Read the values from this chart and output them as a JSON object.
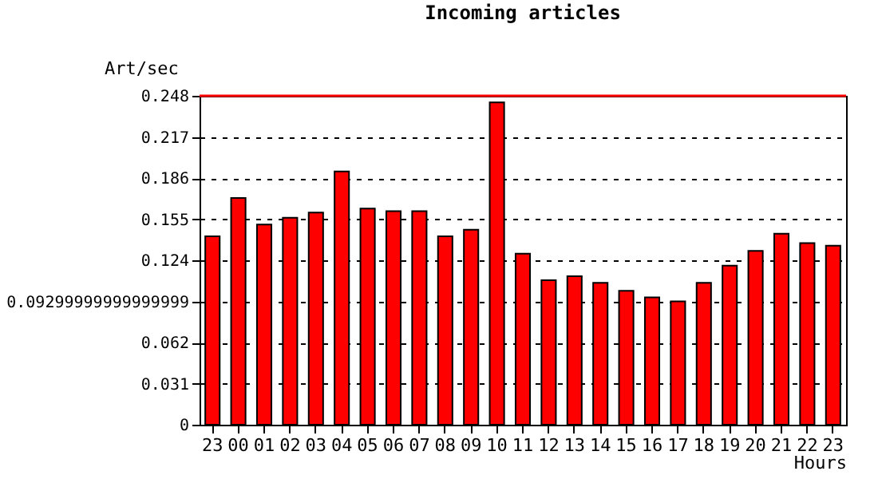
{
  "chart_data": {
    "type": "bar",
    "title": "Incoming articles",
    "xlabel": "Hours",
    "ylabel": "Art/sec",
    "categories": [
      "23",
      "00",
      "01",
      "02",
      "03",
      "04",
      "05",
      "06",
      "07",
      "08",
      "09",
      "10",
      "11",
      "12",
      "13",
      "14",
      "15",
      "16",
      "17",
      "18",
      "19",
      "20",
      "21",
      "22",
      "23"
    ],
    "values": [
      0.142,
      0.171,
      0.151,
      0.156,
      0.16,
      0.191,
      0.163,
      0.161,
      0.161,
      0.142,
      0.147,
      0.243,
      0.129,
      0.109,
      0.112,
      0.107,
      0.101,
      0.096,
      0.093,
      0.107,
      0.12,
      0.131,
      0.144,
      0.137,
      0.135
    ],
    "color": "#ff0000",
    "ylim": [
      0,
      0.248
    ],
    "yticks": [
      0,
      0.031,
      0.062,
      {
        "value": 0.093,
        "label": "0.09299999999999999"
      },
      0.124,
      0.155,
      0.186,
      0.217,
      0.248
    ],
    "ref_lines": [
      {
        "axis": "y",
        "value": 0.248,
        "color": "#ff0000"
      }
    ],
    "grid": "y"
  }
}
